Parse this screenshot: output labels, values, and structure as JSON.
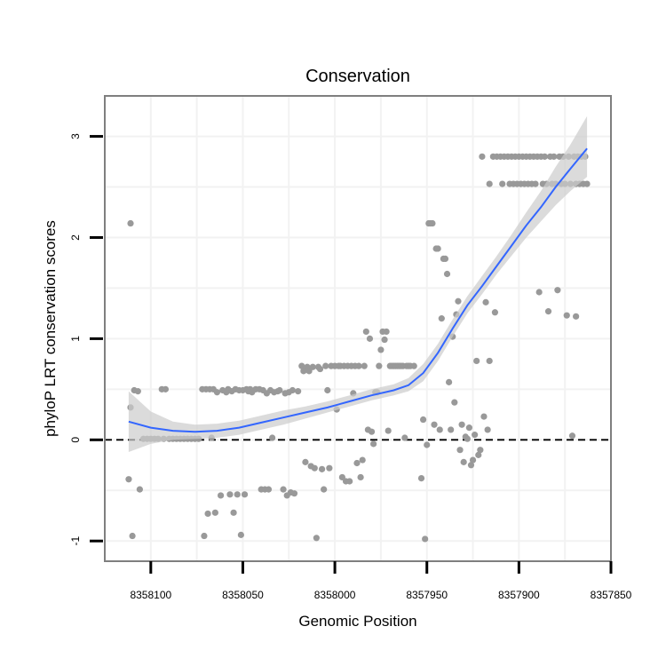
{
  "chart_data": {
    "type": "scatter",
    "title": "Conservation",
    "xlabel": "Genomic Position",
    "ylabel": "phyloP LRT conservation scores",
    "x_reversed": true,
    "xlim": [
      8358125,
      8357850
    ],
    "ylim": [
      -1.2,
      3.4
    ],
    "x_ticks": [
      8358100,
      8358050,
      8358000,
      8357950,
      8357900,
      8357850
    ],
    "x_tick_labels": [
      "8358100",
      "8358050",
      "8358000",
      "8357950",
      "8357900",
      "8357850"
    ],
    "y_ticks": [
      -1,
      0,
      1,
      2,
      3
    ],
    "y_tick_labels": [
      "-1",
      "0",
      "1",
      "2",
      "3"
    ],
    "reference_line": {
      "y": 0,
      "style": "dashed"
    },
    "colors": {
      "points": "#999999",
      "smooth_line": "#3366ff",
      "ribbon": "#cccccc",
      "panel_border": "#7f7f7f",
      "grid": "#f2f2f2"
    },
    "series": [
      {
        "name": "phyloP scores",
        "points": [
          [
            8358112,
            -0.39
          ],
          [
            8358111,
            2.14
          ],
          [
            8358111,
            0.32
          ],
          [
            8358110,
            -0.95
          ],
          [
            8358109,
            0.49
          ],
          [
            8358107,
            0.48
          ],
          [
            8358106,
            -0.49
          ],
          [
            8358104,
            0.01
          ],
          [
            8358102,
            0.01
          ],
          [
            8358100,
            0.01
          ],
          [
            8358098,
            0.01
          ],
          [
            8358096,
            0.01
          ],
          [
            8358094,
            0.5
          ],
          [
            8358093,
            0.01
          ],
          [
            8358092,
            0.5
          ],
          [
            8358090,
            0.01
          ],
          [
            8358088,
            0.01
          ],
          [
            8358086,
            0.01
          ],
          [
            8358084,
            0.01
          ],
          [
            8358082,
            0.01
          ],
          [
            8358080,
            0.01
          ],
          [
            8358078,
            0.01
          ],
          [
            8358076,
            0.01
          ],
          [
            8358074,
            0.01
          ],
          [
            8358072,
            0.5
          ],
          [
            8358071,
            -0.95
          ],
          [
            8358070,
            0.5
          ],
          [
            8358069,
            -0.73
          ],
          [
            8358068,
            0.5
          ],
          [
            8358067,
            0.02
          ],
          [
            8358066,
            0.5
          ],
          [
            8358065,
            -0.72
          ],
          [
            8358064,
            0.47
          ],
          [
            8358062,
            -0.55
          ],
          [
            8358061,
            0.49
          ],
          [
            8358059,
            0.47
          ],
          [
            8358058,
            0.5
          ],
          [
            8358057,
            -0.54
          ],
          [
            8358056,
            0.48
          ],
          [
            8358055,
            -0.72
          ],
          [
            8358054,
            0.5
          ],
          [
            8358053,
            -0.54
          ],
          [
            8358052,
            0.49
          ],
          [
            8358051,
            -0.94
          ],
          [
            8358050,
            0.49
          ],
          [
            8358049,
            -0.54
          ],
          [
            8358048,
            0.5
          ],
          [
            8358047,
            0.48
          ],
          [
            8358046,
            0.5
          ],
          [
            8358045,
            0.47
          ],
          [
            8358043,
            0.5
          ],
          [
            8358041,
            0.5
          ],
          [
            8358040,
            -0.49
          ],
          [
            8358039,
            0.49
          ],
          [
            8358038,
            -0.49
          ],
          [
            8358037,
            0.46
          ],
          [
            8358036,
            -0.49
          ],
          [
            8358035,
            0.49
          ],
          [
            8358034,
            0.02
          ],
          [
            8358033,
            0.47
          ],
          [
            8358031,
            0.48
          ],
          [
            8358030,
            0.49
          ],
          [
            8358028,
            -0.49
          ],
          [
            8358027,
            0.46
          ],
          [
            8358026,
            -0.55
          ],
          [
            8358025,
            0.47
          ],
          [
            8358024,
            -0.52
          ],
          [
            8358023,
            0.49
          ],
          [
            8358022,
            -0.53
          ],
          [
            8358020,
            0.48
          ],
          [
            8358018,
            0.73
          ],
          [
            8358017,
            0.68
          ],
          [
            8358016,
            -0.22
          ],
          [
            8358015,
            0.72
          ],
          [
            8358014,
            0.68
          ],
          [
            8358013,
            -0.26
          ],
          [
            8358012,
            0.72
          ],
          [
            8358011,
            -0.28
          ],
          [
            8358010,
            -0.97
          ],
          [
            8358009,
            0.72
          ],
          [
            8358008,
            0.7
          ],
          [
            8358007,
            -0.29
          ],
          [
            8358006,
            -0.49
          ],
          [
            8358005,
            0.73
          ],
          [
            8358004,
            0.49
          ],
          [
            8358003,
            -0.28
          ],
          [
            8358002,
            0.73
          ],
          [
            8358000,
            0.73
          ],
          [
            8357999,
            0.3
          ],
          [
            8357998,
            0.73
          ],
          [
            8357997,
            0.73
          ],
          [
            8357996,
            -0.37
          ],
          [
            8357995,
            0.73
          ],
          [
            8357994,
            -0.41
          ],
          [
            8357993,
            0.73
          ],
          [
            8357992,
            -0.41
          ],
          [
            8357991,
            0.73
          ],
          [
            8357990,
            0.46
          ],
          [
            8357989,
            0.73
          ],
          [
            8357988,
            -0.23
          ],
          [
            8357987,
            0.73
          ],
          [
            8357986,
            -0.37
          ],
          [
            8357985,
            -0.2
          ],
          [
            8357984,
            0.73
          ],
          [
            8357983,
            1.07
          ],
          [
            8357982,
            0.1
          ],
          [
            8357981,
            1.0
          ],
          [
            8357980,
            0.08
          ],
          [
            8357979,
            -0.04
          ],
          [
            8357978,
            0.47
          ],
          [
            8357977,
            0.47
          ],
          [
            8357976,
            0.73
          ],
          [
            8357975,
            0.89
          ],
          [
            8357974,
            1.07
          ],
          [
            8357973,
            0.99
          ],
          [
            8357972,
            1.07
          ],
          [
            8357971,
            0.09
          ],
          [
            8357970,
            0.73
          ],
          [
            8357969,
            0.73
          ],
          [
            8357968,
            0.73
          ],
          [
            8357967,
            0.73
          ],
          [
            8357966,
            0.73
          ],
          [
            8357965,
            0.73
          ],
          [
            8357964,
            0.73
          ],
          [
            8357963,
            0.73
          ],
          [
            8357962,
            0.02
          ],
          [
            8357961,
            0.73
          ],
          [
            8357960,
            0.73
          ],
          [
            8357959,
            0.73
          ],
          [
            8357957,
            0.73
          ],
          [
            8357953,
            -0.38
          ],
          [
            8357952,
            0.2
          ],
          [
            8357951,
            -0.98
          ],
          [
            8357950,
            -0.05
          ],
          [
            8357949,
            2.14
          ],
          [
            8357948,
            2.14
          ],
          [
            8357947,
            2.14
          ],
          [
            8357946,
            0.15
          ],
          [
            8357945,
            1.89
          ],
          [
            8357944,
            1.89
          ],
          [
            8357943,
            0.1
          ],
          [
            8357942,
            1.2
          ],
          [
            8357941,
            1.79
          ],
          [
            8357940,
            1.79
          ],
          [
            8357939,
            1.64
          ],
          [
            8357938,
            0.57
          ],
          [
            8357937,
            0.1
          ],
          [
            8357936,
            1.02
          ],
          [
            8357935,
            0.37
          ],
          [
            8357934,
            1.24
          ],
          [
            8357933,
            1.37
          ],
          [
            8357932,
            -0.1
          ],
          [
            8357931,
            0.15
          ],
          [
            8357930,
            -0.22
          ],
          [
            8357929,
            0.03
          ],
          [
            8357928,
            0.01
          ],
          [
            8357927,
            0.12
          ],
          [
            8357926,
            -0.25
          ],
          [
            8357925,
            -0.2
          ],
          [
            8357924,
            0.05
          ],
          [
            8357923,
            0.78
          ],
          [
            8357922,
            -0.15
          ],
          [
            8357921,
            -0.1
          ],
          [
            8357920,
            2.8
          ],
          [
            8357919,
            0.23
          ],
          [
            8357918,
            1.36
          ],
          [
            8357917,
            0.1
          ],
          [
            8357916,
            2.53
          ],
          [
            8357916,
            0.78
          ],
          [
            8357914,
            2.8
          ],
          [
            8357913,
            1.26
          ],
          [
            8357912,
            2.8
          ],
          [
            8357910,
            2.8
          ],
          [
            8357909,
            2.53
          ],
          [
            8357908,
            2.8
          ],
          [
            8357906,
            2.8
          ],
          [
            8357905,
            2.53
          ],
          [
            8357904,
            2.8
          ],
          [
            8357903,
            2.53
          ],
          [
            8357902,
            2.8
          ],
          [
            8357901,
            2.53
          ],
          [
            8357900,
            2.8
          ],
          [
            8357899,
            2.53
          ],
          [
            8357898,
            2.8
          ],
          [
            8357897,
            2.53
          ],
          [
            8357896,
            2.8
          ],
          [
            8357895,
            2.53
          ],
          [
            8357894,
            2.8
          ],
          [
            8357893,
            2.53
          ],
          [
            8357892,
            2.8
          ],
          [
            8357891,
            2.53
          ],
          [
            8357890,
            2.8
          ],
          [
            8357889,
            1.46
          ],
          [
            8357888,
            2.8
          ],
          [
            8357887,
            2.53
          ],
          [
            8357886,
            2.8
          ],
          [
            8357885,
            2.53
          ],
          [
            8357884,
            1.27
          ],
          [
            8357883,
            2.8
          ],
          [
            8357882,
            2.53
          ],
          [
            8357881,
            2.8
          ],
          [
            8357880,
            2.53
          ],
          [
            8357879,
            1.48
          ],
          [
            8357878,
            2.8
          ],
          [
            8357877,
            2.53
          ],
          [
            8357876,
            2.8
          ],
          [
            8357875,
            2.53
          ],
          [
            8357874,
            1.23
          ],
          [
            8357873,
            2.8
          ],
          [
            8357872,
            2.53
          ],
          [
            8357871,
            0.04
          ],
          [
            8357870,
            2.8
          ],
          [
            8357869,
            2.53
          ],
          [
            8357869,
            1.22
          ],
          [
            8357868,
            2.8
          ],
          [
            8357867,
            2.53
          ],
          [
            8357866,
            2.8
          ],
          [
            8357865,
            2.53
          ],
          [
            8357864,
            2.8
          ],
          [
            8357863,
            2.53
          ]
        ]
      }
    ],
    "smooth": {
      "x": [
        8358112,
        8358100,
        8358088,
        8358076,
        8358064,
        8358052,
        8358040,
        8358028,
        8358016,
        8358004,
        8357992,
        8357980,
        8357968,
        8357960,
        8357952,
        8357944,
        8357936,
        8357928,
        8357920,
        8357912,
        8357904,
        8357896,
        8357888,
        8357880,
        8357872,
        8357863
      ],
      "y": [
        0.18,
        0.12,
        0.09,
        0.08,
        0.09,
        0.12,
        0.17,
        0.22,
        0.27,
        0.32,
        0.38,
        0.44,
        0.49,
        0.54,
        0.66,
        0.86,
        1.1,
        1.33,
        1.52,
        1.72,
        1.92,
        2.12,
        2.3,
        2.5,
        2.68,
        2.88
      ],
      "lower": [
        -0.12,
        -0.04,
        0.0,
        0.01,
        0.02,
        0.05,
        0.1,
        0.15,
        0.21,
        0.27,
        0.33,
        0.39,
        0.44,
        0.48,
        0.58,
        0.78,
        1.02,
        1.25,
        1.44,
        1.64,
        1.82,
        2.0,
        2.16,
        2.32,
        2.46,
        2.6
      ],
      "upper": [
        0.48,
        0.28,
        0.18,
        0.15,
        0.16,
        0.19,
        0.24,
        0.29,
        0.33,
        0.38,
        0.44,
        0.5,
        0.55,
        0.61,
        0.75,
        0.95,
        1.19,
        1.42,
        1.62,
        1.82,
        2.03,
        2.25,
        2.46,
        2.7,
        2.92,
        3.2
      ]
    }
  }
}
